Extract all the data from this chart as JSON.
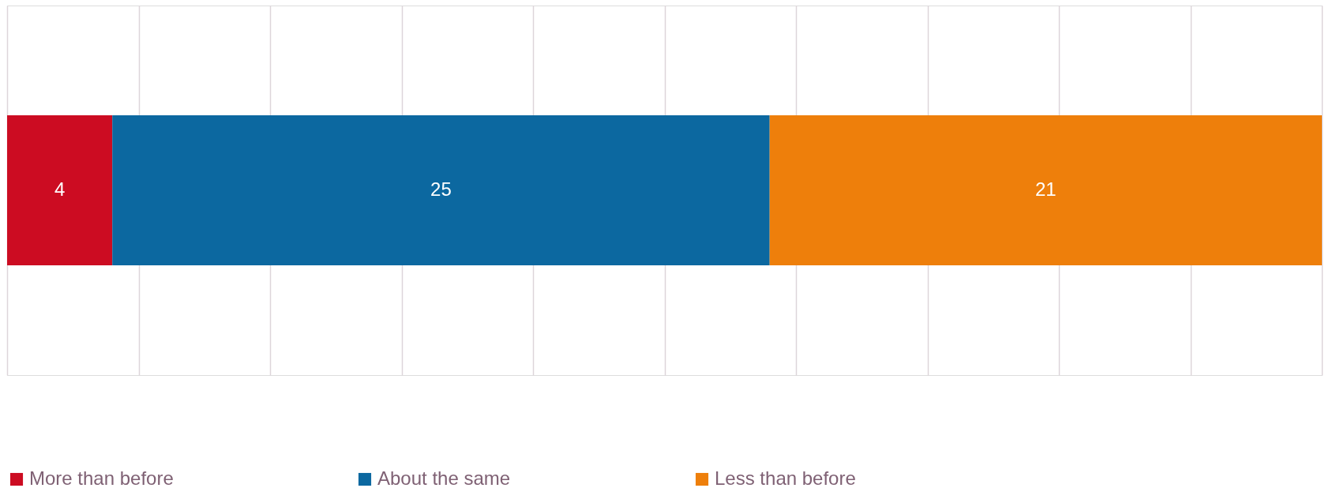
{
  "chart_data": {
    "type": "bar",
    "orientation": "horizontal",
    "stacked": true,
    "categories": [
      null
    ],
    "series": [
      {
        "name": "More than before",
        "color": "#cc0c22",
        "values": [
          4
        ]
      },
      {
        "name": "About the same",
        "color": "#0c68a0",
        "values": [
          25
        ]
      },
      {
        "name": "Less than before",
        "color": "#ee7f0b",
        "values": [
          21
        ]
      }
    ],
    "xlim": [
      0,
      50
    ],
    "xticks": [
      {
        "value": 0,
        "label": null
      },
      {
        "value": 5,
        "label": null
      },
      {
        "value": 10,
        "label": null
      },
      {
        "value": 15,
        "label": null
      },
      {
        "value": 20,
        "label": null
      },
      {
        "value": 25,
        "label": null
      },
      {
        "value": 30,
        "label": null
      },
      {
        "value": 35,
        "label": null
      },
      {
        "value": 40,
        "label": null
      },
      {
        "value": 45,
        "label": null
      },
      {
        "value": 50,
        "label": null
      }
    ],
    "grid": "x",
    "tick_labels": false,
    "legend": "bottom",
    "data_labels": true
  }
}
